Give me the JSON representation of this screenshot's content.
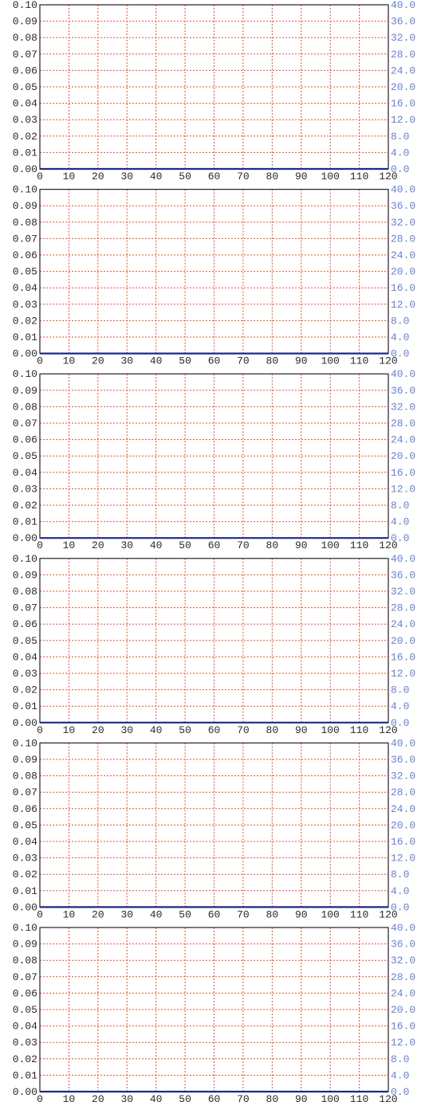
{
  "page": {
    "grid_color": "#e0502a",
    "right_axis_color": "#6a7fd0",
    "baseline_color": "#1a2a8a",
    "background": "#ffffff"
  },
  "chart_data": [
    {
      "type": "line",
      "title": "",
      "xlabel": "",
      "ylabel": "",
      "x_ticks": [
        "0",
        "10",
        "20",
        "30",
        "40",
        "50",
        "60",
        "70",
        "80",
        "90",
        "100",
        "110",
        "120"
      ],
      "y_left_ticks": [
        "0.00",
        "0.01",
        "0.02",
        "0.03",
        "0.04",
        "0.05",
        "0.06",
        "0.07",
        "0.08",
        "0.09",
        "0.10"
      ],
      "y_right_ticks": [
        "0.0",
        "4.0",
        "8.0",
        "12.0",
        "16.0",
        "20.0",
        "24.0",
        "28.0",
        "32.0",
        "36.0",
        "40.0"
      ],
      "xlim": [
        0,
        120
      ],
      "ylim_left": [
        0,
        0.1
      ],
      "ylim_right": [
        0,
        40
      ],
      "grid": true,
      "series": [
        {
          "x": [
            0,
            120
          ],
          "y": [
            0,
            0
          ]
        }
      ]
    },
    {
      "type": "line",
      "title": "",
      "xlabel": "",
      "ylabel": "",
      "x_ticks": [
        "0",
        "10",
        "20",
        "30",
        "40",
        "50",
        "60",
        "70",
        "80",
        "90",
        "100",
        "110",
        "120"
      ],
      "y_left_ticks": [
        "0.00",
        "0.01",
        "0.02",
        "0.03",
        "0.04",
        "0.05",
        "0.06",
        "0.07",
        "0.08",
        "0.09",
        "0.10"
      ],
      "y_right_ticks": [
        "0.0",
        "4.0",
        "8.0",
        "12.0",
        "16.0",
        "20.0",
        "24.0",
        "28.0",
        "32.0",
        "36.0",
        "40.0"
      ],
      "xlim": [
        0,
        120
      ],
      "ylim_left": [
        0,
        0.1
      ],
      "ylim_right": [
        0,
        40
      ],
      "grid": true,
      "series": [
        {
          "x": [
            0,
            120
          ],
          "y": [
            0,
            0
          ]
        }
      ]
    },
    {
      "type": "line",
      "title": "",
      "xlabel": "",
      "ylabel": "",
      "x_ticks": [
        "0",
        "10",
        "20",
        "30",
        "40",
        "50",
        "60",
        "70",
        "80",
        "90",
        "100",
        "110",
        "120"
      ],
      "y_left_ticks": [
        "0.00",
        "0.01",
        "0.02",
        "0.03",
        "0.04",
        "0.05",
        "0.06",
        "0.07",
        "0.08",
        "0.09",
        "0.10"
      ],
      "y_right_ticks": [
        "0.0",
        "4.0",
        "8.0",
        "12.0",
        "16.0",
        "20.0",
        "24.0",
        "28.0",
        "32.0",
        "36.0",
        "40.0"
      ],
      "xlim": [
        0,
        120
      ],
      "ylim_left": [
        0,
        0.1
      ],
      "ylim_right": [
        0,
        40
      ],
      "grid": true,
      "series": [
        {
          "x": [
            0,
            120
          ],
          "y": [
            0,
            0
          ]
        }
      ]
    },
    {
      "type": "line",
      "title": "",
      "xlabel": "",
      "ylabel": "",
      "x_ticks": [
        "0",
        "10",
        "20",
        "30",
        "40",
        "50",
        "60",
        "70",
        "80",
        "90",
        "100",
        "110",
        "120"
      ],
      "y_left_ticks": [
        "0.00",
        "0.01",
        "0.02",
        "0.03",
        "0.04",
        "0.05",
        "0.06",
        "0.07",
        "0.08",
        "0.09",
        "0.10"
      ],
      "y_right_ticks": [
        "0.0",
        "4.0",
        "8.0",
        "12.0",
        "16.0",
        "20.0",
        "24.0",
        "28.0",
        "32.0",
        "36.0",
        "40.0"
      ],
      "xlim": [
        0,
        120
      ],
      "ylim_left": [
        0,
        0.1
      ],
      "ylim_right": [
        0,
        40
      ],
      "grid": true,
      "series": [
        {
          "x": [
            0,
            120
          ],
          "y": [
            0,
            0
          ]
        }
      ]
    },
    {
      "type": "line",
      "title": "",
      "xlabel": "",
      "ylabel": "",
      "x_ticks": [
        "0",
        "10",
        "20",
        "30",
        "40",
        "50",
        "60",
        "70",
        "80",
        "90",
        "100",
        "110",
        "120"
      ],
      "y_left_ticks": [
        "0.00",
        "0.01",
        "0.02",
        "0.03",
        "0.04",
        "0.05",
        "0.06",
        "0.07",
        "0.08",
        "0.09",
        "0.10"
      ],
      "y_right_ticks": [
        "0.0",
        "4.0",
        "8.0",
        "12.0",
        "16.0",
        "20.0",
        "24.0",
        "28.0",
        "32.0",
        "36.0",
        "40.0"
      ],
      "xlim": [
        0,
        120
      ],
      "ylim_left": [
        0,
        0.1
      ],
      "ylim_right": [
        0,
        40
      ],
      "grid": true,
      "series": [
        {
          "x": [
            0,
            120
          ],
          "y": [
            0,
            0
          ]
        }
      ]
    },
    {
      "type": "line",
      "title": "",
      "xlabel": "",
      "ylabel": "",
      "x_ticks": [
        "0",
        "10",
        "20",
        "30",
        "40",
        "50",
        "60",
        "70",
        "80",
        "90",
        "100",
        "110",
        "120"
      ],
      "y_left_ticks": [
        "0.00",
        "0.01",
        "0.02",
        "0.03",
        "0.04",
        "0.05",
        "0.06",
        "0.07",
        "0.08",
        "0.09",
        "0.10"
      ],
      "y_right_ticks": [
        "0.0",
        "4.0",
        "8.0",
        "12.0",
        "16.0",
        "20.0",
        "24.0",
        "28.0",
        "32.0",
        "36.0",
        "40.0"
      ],
      "xlim": [
        0,
        120
      ],
      "ylim_left": [
        0,
        0.1
      ],
      "ylim_right": [
        0,
        40
      ],
      "grid": true,
      "series": [
        {
          "x": [
            0,
            120
          ],
          "y": [
            0,
            0
          ]
        }
      ]
    }
  ]
}
